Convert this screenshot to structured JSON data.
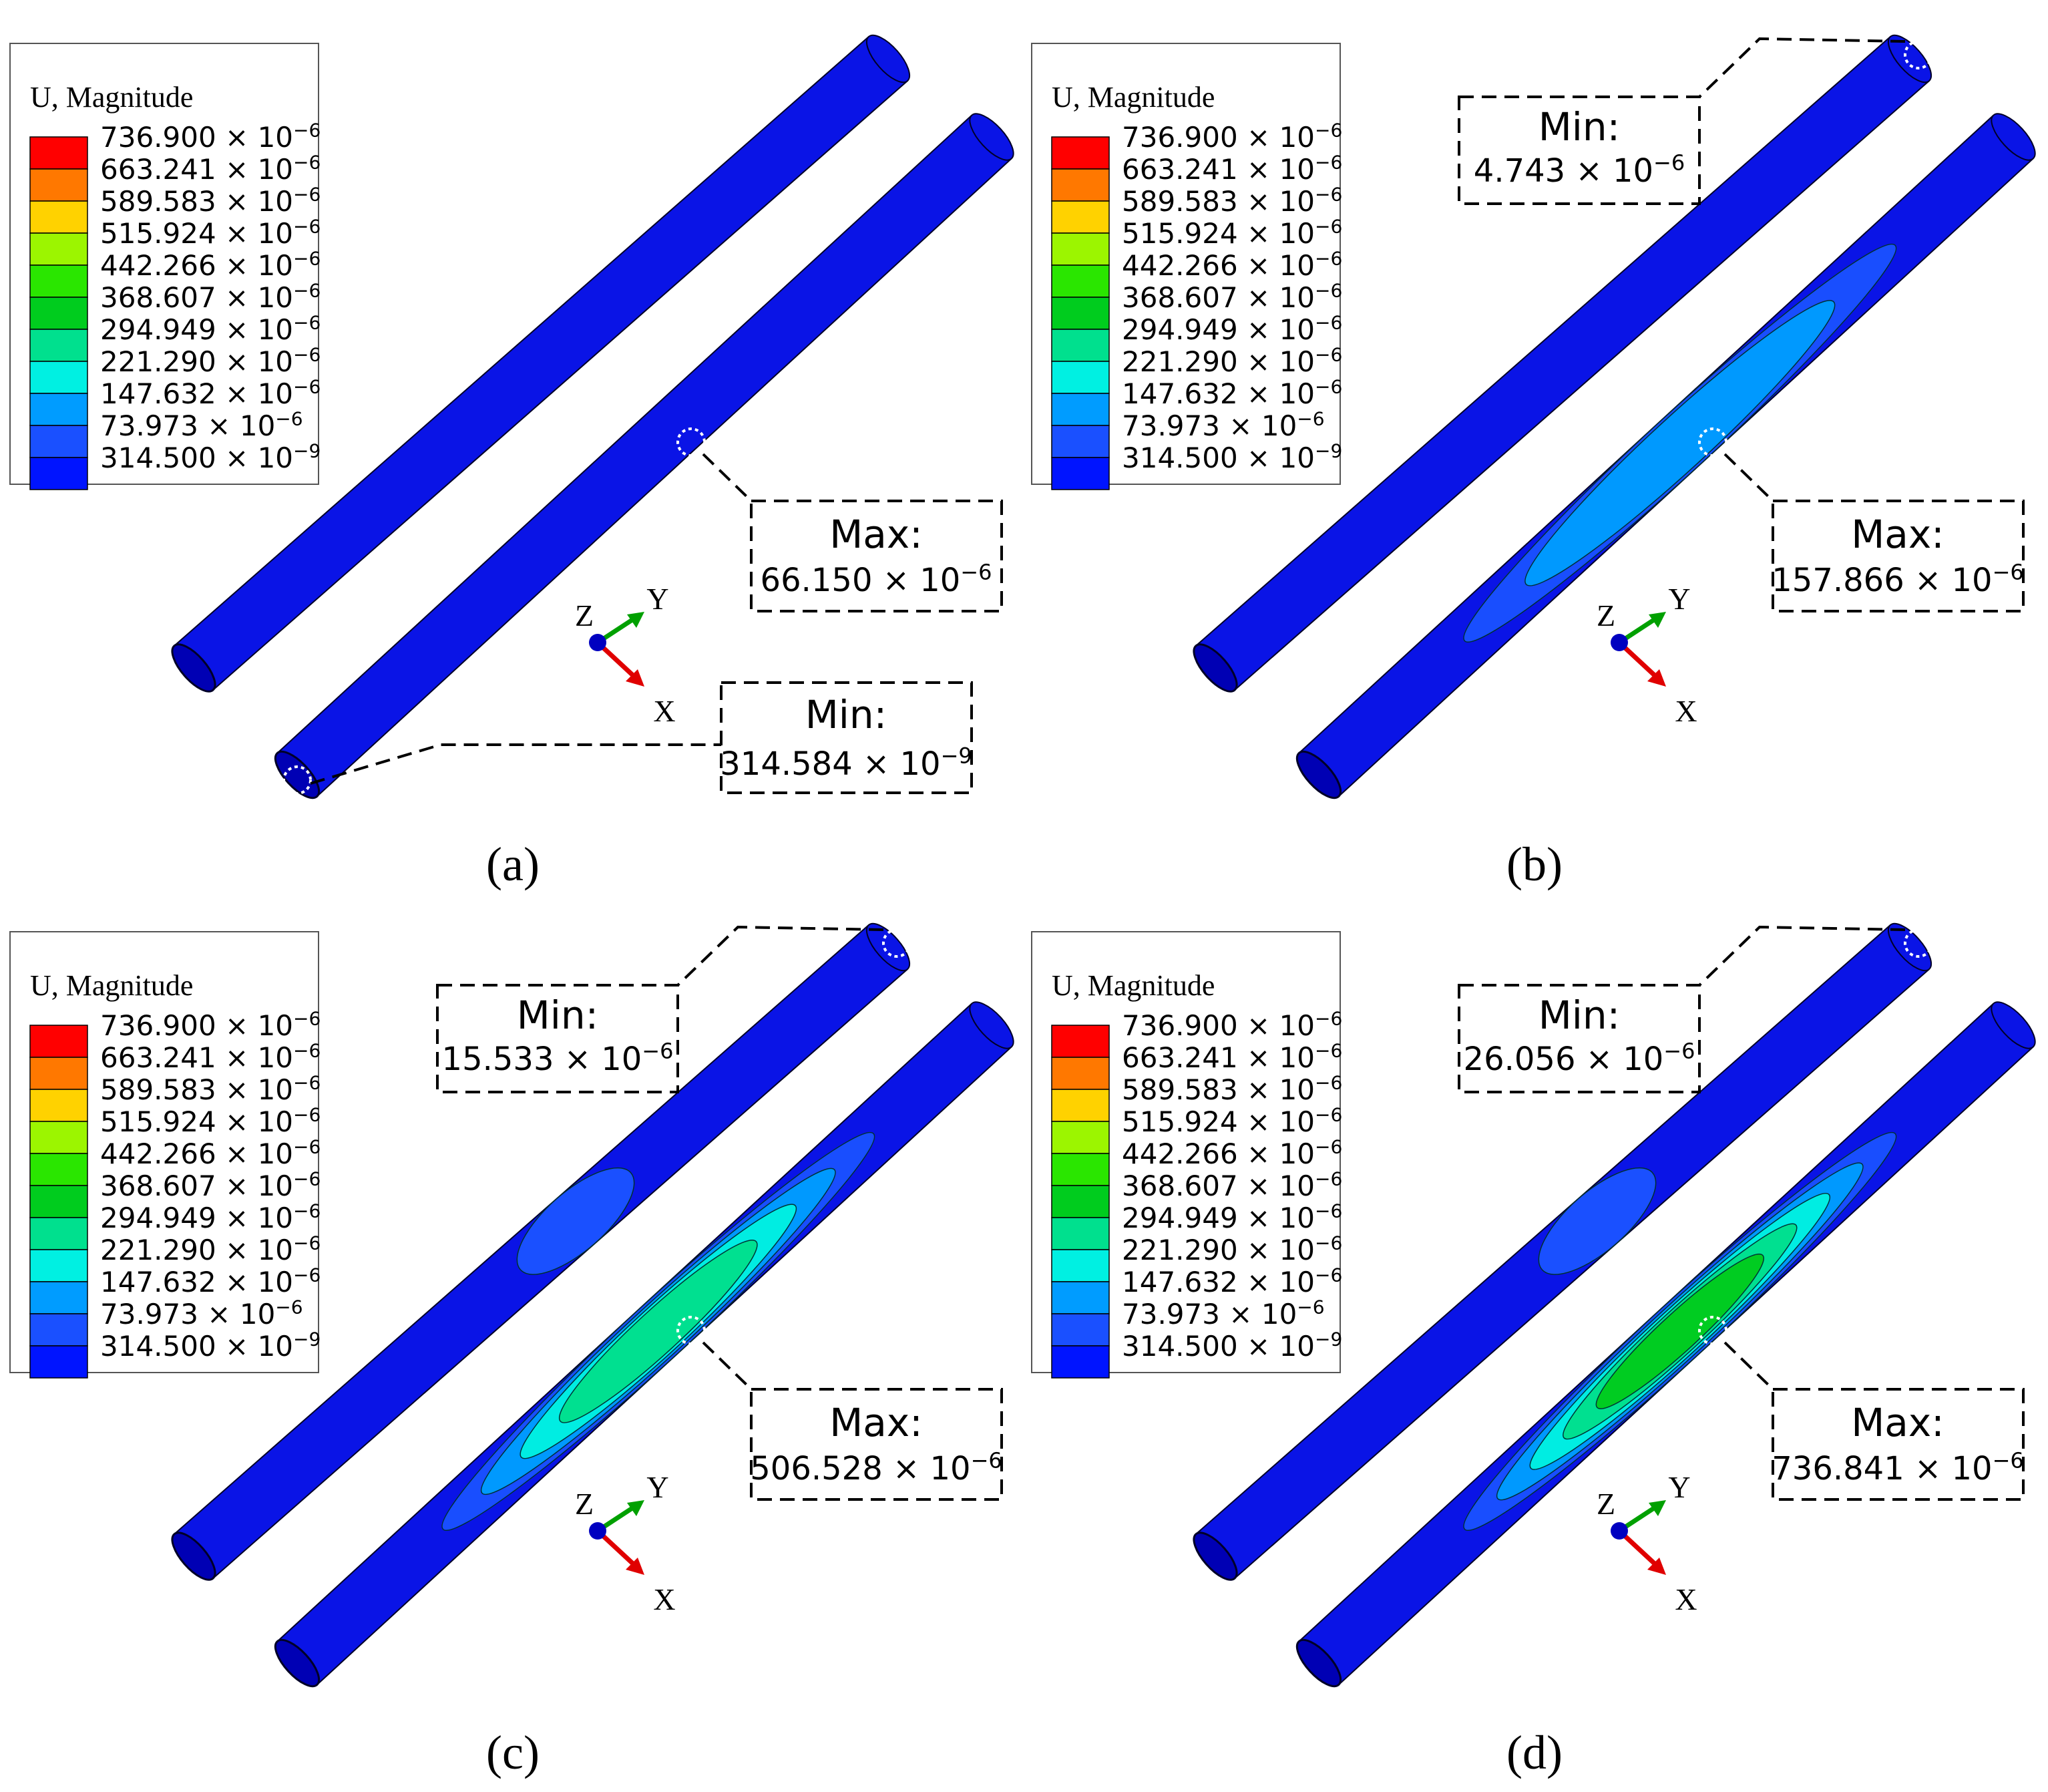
{
  "legend": {
    "title": "U, Magnitude",
    "levels": [
      {
        "label": "736.900 × 10",
        "exp": "−6",
        "color": "#ff0000"
      },
      {
        "label": "663.241 × 10",
        "exp": "−6",
        "color": "#ff7800"
      },
      {
        "label": "589.583 × 10",
        "exp": "−6",
        "color": "#ffd200"
      },
      {
        "label": "515.924 × 10",
        "exp": "−6",
        "color": "#9cf500"
      },
      {
        "label": "442.266 × 10",
        "exp": "−6",
        "color": "#2ae600"
      },
      {
        "label": "368.607 × 10",
        "exp": "−6",
        "color": "#00cc1e"
      },
      {
        "label": "294.949 × 10",
        "exp": "−6",
        "color": "#00e08e"
      },
      {
        "label": "221.290 × 10",
        "exp": "−6",
        "color": "#00f0e2"
      },
      {
        "label": "147.632 × 10",
        "exp": "−6",
        "color": "#009cff"
      },
      {
        "label": "73.973 × 10",
        "exp": "−6",
        "color": "#1a50ff"
      },
      {
        "label": "314.500 × 10",
        "exp": "−9",
        "color": "#0014ff"
      }
    ]
  },
  "panels": [
    {
      "caption": "(a)",
      "max": {
        "title": "Max:",
        "value": "66.150 × 10",
        "exp": "−6",
        "level": 0
      },
      "min": {
        "title": "Min:",
        "value": "314.584 × 10",
        "exp": "−9"
      }
    },
    {
      "caption": "(b)",
      "max": {
        "title": "Max:",
        "value": "157.866 × 10",
        "exp": "−6",
        "level": 2
      },
      "min": {
        "title": "Min:",
        "value": "4.743 × 10",
        "exp": "−6"
      }
    },
    {
      "caption": "(c)",
      "max": {
        "title": "Max:",
        "value": "506.528 × 10",
        "exp": "−6",
        "level": 4
      },
      "min": {
        "title": "Min:",
        "value": "15.533 × 10",
        "exp": "−6"
      }
    },
    {
      "caption": "(d)",
      "max": {
        "title": "Max:",
        "value": "736.841 × 10",
        "exp": "−6",
        "level": 5
      },
      "min": {
        "title": "Min:",
        "value": "26.056 × 10",
        "exp": "−6"
      }
    }
  ],
  "triad": {
    "x": "X",
    "y": "Y",
    "z": "Z"
  },
  "colors": {
    "pipe_base": "#0a14e6",
    "pipe_edge": "#000028",
    "triad_x": "#e00000",
    "triad_y": "#00a000",
    "triad_z": "#0000c0"
  }
}
